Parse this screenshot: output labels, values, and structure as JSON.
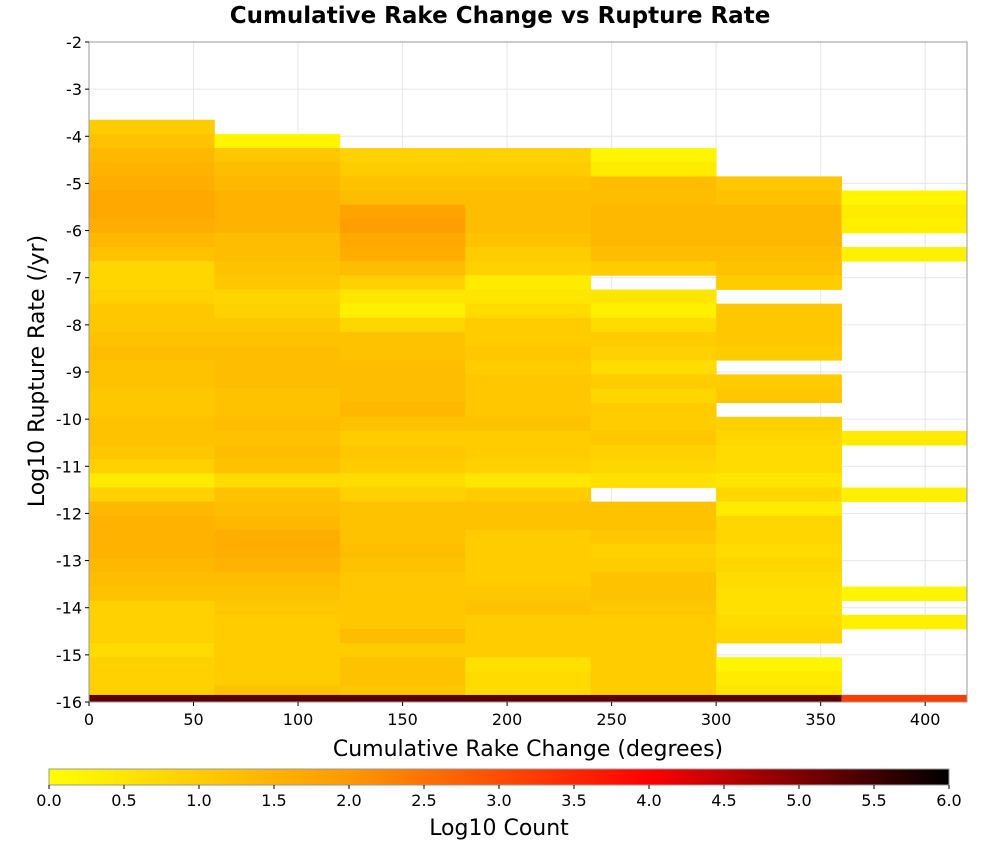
{
  "chart_data": {
    "type": "heatmap",
    "title": "Cumulative Rake Change vs Rupture Rate",
    "xlabel": "Cumulative Rake Change (degrees)",
    "ylabel": "Log10 Rupture Rate (/yr)",
    "xlim": [
      0,
      420
    ],
    "ylim": [
      -16,
      -2
    ],
    "x_ticks": [
      0,
      50,
      100,
      150,
      200,
      250,
      300,
      350,
      400
    ],
    "y_ticks": [
      -2,
      -3,
      -4,
      -5,
      -6,
      -7,
      -8,
      -9,
      -10,
      -11,
      -12,
      -13,
      -14,
      -15,
      -16
    ],
    "grid": true,
    "x_bin_edges": [
      0,
      60,
      120,
      180,
      240,
      300,
      360,
      420
    ],
    "y_bin_width": 0.3,
    "colorbar": {
      "label": "Log10 Count",
      "min": 0.0,
      "max": 6.0,
      "ticks": [
        "0.0",
        "0.5",
        "1.0",
        "1.5",
        "2.0",
        "2.5",
        "3.0",
        "3.5",
        "4.0",
        "4.5",
        "5.0",
        "5.5",
        "6.0"
      ],
      "colormap": "hot-reversed",
      "stops": [
        "#ffff00",
        "#ff9900",
        "#ff0000",
        "#000000"
      ]
    },
    "columns": [
      {
        "x0": 0,
        "x1": 60,
        "cells": [
          {
            "y": -3.8,
            "v": 1.0
          },
          {
            "y": -4.1,
            "v": 1.2
          },
          {
            "y": -4.4,
            "v": 1.4
          },
          {
            "y": -4.7,
            "v": 1.5
          },
          {
            "y": -5.0,
            "v": 1.6
          },
          {
            "y": -5.3,
            "v": 1.7
          },
          {
            "y": -5.6,
            "v": 1.7
          },
          {
            "y": -5.9,
            "v": 1.6
          },
          {
            "y": -6.2,
            "v": 1.4
          },
          {
            "y": -6.5,
            "v": 1.2
          },
          {
            "y": -6.8,
            "v": 0.8
          },
          {
            "y": -7.1,
            "v": 0.8
          },
          {
            "y": -7.4,
            "v": 0.9
          },
          {
            "y": -7.7,
            "v": 1.1
          },
          {
            "y": -8.0,
            "v": 1.1
          },
          {
            "y": -8.3,
            "v": 1.2
          },
          {
            "y": -8.6,
            "v": 1.3
          },
          {
            "y": -8.9,
            "v": 1.2
          },
          {
            "y": -9.2,
            "v": 1.2
          },
          {
            "y": -9.5,
            "v": 1.1
          },
          {
            "y": -9.8,
            "v": 1.1
          },
          {
            "y": -10.1,
            "v": 1.2
          },
          {
            "y": -10.4,
            "v": 1.2
          },
          {
            "y": -10.7,
            "v": 1.1
          },
          {
            "y": -11.0,
            "v": 0.9
          },
          {
            "y": -11.3,
            "v": 0.4
          },
          {
            "y": -11.6,
            "v": 0.9
          },
          {
            "y": -11.9,
            "v": 1.4
          },
          {
            "y": -12.2,
            "v": 1.5
          },
          {
            "y": -12.5,
            "v": 1.5
          },
          {
            "y": -12.8,
            "v": 1.5
          },
          {
            "y": -13.1,
            "v": 1.4
          },
          {
            "y": -13.4,
            "v": 1.3
          },
          {
            "y": -13.7,
            "v": 1.2
          },
          {
            "y": -14.0,
            "v": 0.9
          },
          {
            "y": -14.3,
            "v": 0.9
          },
          {
            "y": -14.6,
            "v": 0.9
          },
          {
            "y": -14.9,
            "v": 0.7
          },
          {
            "y": -15.2,
            "v": 0.9
          },
          {
            "y": -15.5,
            "v": 0.9
          },
          {
            "y": -15.8,
            "v": 0.9
          }
        ]
      },
      {
        "x0": 60,
        "x1": 120,
        "cells": [
          {
            "y": -4.1,
            "v": 0.2
          },
          {
            "y": -4.4,
            "v": 1.1
          },
          {
            "y": -4.7,
            "v": 1.3
          },
          {
            "y": -5.0,
            "v": 1.4
          },
          {
            "y": -5.3,
            "v": 1.5
          },
          {
            "y": -5.6,
            "v": 1.5
          },
          {
            "y": -5.9,
            "v": 1.5
          },
          {
            "y": -6.2,
            "v": 1.3
          },
          {
            "y": -6.5,
            "v": 1.3
          },
          {
            "y": -6.8,
            "v": 1.2
          },
          {
            "y": -7.1,
            "v": 1.1
          },
          {
            "y": -7.4,
            "v": 0.8
          },
          {
            "y": -7.7,
            "v": 0.9
          },
          {
            "y": -8.0,
            "v": 1.1
          },
          {
            "y": -8.3,
            "v": 1.2
          },
          {
            "y": -8.6,
            "v": 1.3
          },
          {
            "y": -8.9,
            "v": 1.3
          },
          {
            "y": -9.2,
            "v": 1.3
          },
          {
            "y": -9.5,
            "v": 1.2
          },
          {
            "y": -9.8,
            "v": 1.2
          },
          {
            "y": -10.1,
            "v": 1.3
          },
          {
            "y": -10.4,
            "v": 1.2
          },
          {
            "y": -10.7,
            "v": 1.3
          },
          {
            "y": -11.0,
            "v": 1.2
          },
          {
            "y": -11.3,
            "v": 0.7
          },
          {
            "y": -11.6,
            "v": 1.2
          },
          {
            "y": -11.9,
            "v": 1.3
          },
          {
            "y": -12.2,
            "v": 1.4
          },
          {
            "y": -12.5,
            "v": 1.6
          },
          {
            "y": -12.8,
            "v": 1.6
          },
          {
            "y": -13.1,
            "v": 1.5
          },
          {
            "y": -13.4,
            "v": 1.3
          },
          {
            "y": -13.7,
            "v": 1.2
          },
          {
            "y": -14.0,
            "v": 1.1
          },
          {
            "y": -14.3,
            "v": 1.0
          },
          {
            "y": -14.6,
            "v": 1.0
          },
          {
            "y": -14.9,
            "v": 1.0
          },
          {
            "y": -15.2,
            "v": 1.0
          },
          {
            "y": -15.5,
            "v": 1.0
          },
          {
            "y": -15.8,
            "v": 1.2
          }
        ]
      },
      {
        "x0": 120,
        "x1": 180,
        "cells": [
          {
            "y": -4.4,
            "v": 0.9
          },
          {
            "y": -4.7,
            "v": 1.0
          },
          {
            "y": -5.0,
            "v": 1.2
          },
          {
            "y": -5.3,
            "v": 1.3
          },
          {
            "y": -5.6,
            "v": 1.8
          },
          {
            "y": -5.9,
            "v": 1.9
          },
          {
            "y": -6.2,
            "v": 1.7
          },
          {
            "y": -6.5,
            "v": 1.6
          },
          {
            "y": -6.8,
            "v": 1.3
          },
          {
            "y": -7.1,
            "v": 0.9
          },
          {
            "y": -7.4,
            "v": 0.5
          },
          {
            "y": -7.7,
            "v": 0.3
          },
          {
            "y": -8.0,
            "v": 0.8
          },
          {
            "y": -8.3,
            "v": 1.2
          },
          {
            "y": -8.6,
            "v": 1.2
          },
          {
            "y": -8.9,
            "v": 1.3
          },
          {
            "y": -9.2,
            "v": 1.3
          },
          {
            "y": -9.5,
            "v": 1.3
          },
          {
            "y": -9.8,
            "v": 1.4
          },
          {
            "y": -10.1,
            "v": 1.2
          },
          {
            "y": -10.4,
            "v": 1.0
          },
          {
            "y": -10.7,
            "v": 1.1
          },
          {
            "y": -11.0,
            "v": 1.0
          },
          {
            "y": -11.3,
            "v": 0.7
          },
          {
            "y": -11.6,
            "v": 0.9
          },
          {
            "y": -11.9,
            "v": 1.2
          },
          {
            "y": -12.2,
            "v": 1.2
          },
          {
            "y": -12.5,
            "v": 1.2
          },
          {
            "y": -12.8,
            "v": 1.3
          },
          {
            "y": -13.1,
            "v": 1.2
          },
          {
            "y": -13.4,
            "v": 1.1
          },
          {
            "y": -13.7,
            "v": 1.1
          },
          {
            "y": -14.0,
            "v": 1.1
          },
          {
            "y": -14.3,
            "v": 1.1
          },
          {
            "y": -14.6,
            "v": 1.3
          },
          {
            "y": -14.9,
            "v": 1.0
          },
          {
            "y": -15.2,
            "v": 1.2
          },
          {
            "y": -15.5,
            "v": 1.2
          },
          {
            "y": -15.8,
            "v": 1.1
          }
        ]
      },
      {
        "x0": 180,
        "x1": 240,
        "cells": [
          {
            "y": -4.4,
            "v": 0.9
          },
          {
            "y": -4.7,
            "v": 1.0
          },
          {
            "y": -5.0,
            "v": 1.2
          },
          {
            "y": -5.3,
            "v": 1.3
          },
          {
            "y": -5.6,
            "v": 1.3
          },
          {
            "y": -5.9,
            "v": 1.3
          },
          {
            "y": -6.2,
            "v": 1.2
          },
          {
            "y": -6.5,
            "v": 1.0
          },
          {
            "y": -6.8,
            "v": 0.9
          },
          {
            "y": -7.1,
            "v": 0.4
          },
          {
            "y": -7.4,
            "v": 0.5
          },
          {
            "y": -7.7,
            "v": 0.7
          },
          {
            "y": -8.0,
            "v": 1.0
          },
          {
            "y": -8.3,
            "v": 1.0
          },
          {
            "y": -8.6,
            "v": 1.1
          },
          {
            "y": -8.9,
            "v": 1.0
          },
          {
            "y": -9.2,
            "v": 1.1
          },
          {
            "y": -9.5,
            "v": 1.1
          },
          {
            "y": -9.8,
            "v": 1.1
          },
          {
            "y": -10.1,
            "v": 1.2
          },
          {
            "y": -10.4,
            "v": 1.0
          },
          {
            "y": -10.7,
            "v": 1.0
          },
          {
            "y": -11.0,
            "v": 0.9
          },
          {
            "y": -11.3,
            "v": 0.5
          },
          {
            "y": -11.6,
            "v": 1.0
          },
          {
            "y": -11.9,
            "v": 1.2
          },
          {
            "y": -12.2,
            "v": 1.2
          },
          {
            "y": -12.5,
            "v": 1.0
          },
          {
            "y": -12.8,
            "v": 1.0
          },
          {
            "y": -13.1,
            "v": 1.0
          },
          {
            "y": -13.4,
            "v": 1.0
          },
          {
            "y": -13.7,
            "v": 1.1
          },
          {
            "y": -14.0,
            "v": 1.2
          },
          {
            "y": -14.3,
            "v": 1.0
          },
          {
            "y": -14.6,
            "v": 1.0
          },
          {
            "y": -14.9,
            "v": 1.0
          },
          {
            "y": -15.2,
            "v": 0.6
          },
          {
            "y": -15.5,
            "v": 0.7
          },
          {
            "y": -15.8,
            "v": 0.7
          }
        ]
      },
      {
        "x0": 240,
        "x1": 300,
        "cells": [
          {
            "y": -4.4,
            "v": 0.2
          },
          {
            "y": -4.7,
            "v": 0.4
          },
          {
            "y": -5.0,
            "v": 1.3
          },
          {
            "y": -5.3,
            "v": 1.3
          },
          {
            "y": -5.6,
            "v": 1.4
          },
          {
            "y": -5.9,
            "v": 1.4
          },
          {
            "y": -6.2,
            "v": 1.4
          },
          {
            "y": -6.5,
            "v": 1.3
          },
          {
            "y": -6.8,
            "v": 1.0
          },
          {
            "y": -7.4,
            "v": 0.5
          },
          {
            "y": -7.7,
            "v": 0.3
          },
          {
            "y": -8.0,
            "v": 0.7
          },
          {
            "y": -8.3,
            "v": 1.0
          },
          {
            "y": -8.6,
            "v": 0.9
          },
          {
            "y": -8.9,
            "v": 0.7
          },
          {
            "y": -9.2,
            "v": 1.0
          },
          {
            "y": -9.5,
            "v": 0.8
          },
          {
            "y": -9.8,
            "v": 1.0
          },
          {
            "y": -10.1,
            "v": 1.0
          },
          {
            "y": -10.4,
            "v": 1.1
          },
          {
            "y": -10.7,
            "v": 0.9
          },
          {
            "y": -11.0,
            "v": 0.8
          },
          {
            "y": -11.3,
            "v": 0.6
          },
          {
            "y": -11.9,
            "v": 1.2
          },
          {
            "y": -12.2,
            "v": 1.2
          },
          {
            "y": -12.5,
            "v": 1.1
          },
          {
            "y": -12.8,
            "v": 0.9
          },
          {
            "y": -13.1,
            "v": 1.0
          },
          {
            "y": -13.4,
            "v": 1.2
          },
          {
            "y": -13.7,
            "v": 1.2
          },
          {
            "y": -14.0,
            "v": 1.1
          },
          {
            "y": -14.3,
            "v": 1.0
          },
          {
            "y": -14.6,
            "v": 1.0
          },
          {
            "y": -14.9,
            "v": 1.0
          },
          {
            "y": -15.2,
            "v": 1.0
          },
          {
            "y": -15.5,
            "v": 1.0
          },
          {
            "y": -15.8,
            "v": 1.0
          }
        ]
      },
      {
        "x0": 300,
        "x1": 360,
        "cells": [
          {
            "y": -5.0,
            "v": 1.1
          },
          {
            "y": -5.3,
            "v": 1.2
          },
          {
            "y": -5.6,
            "v": 1.4
          },
          {
            "y": -5.9,
            "v": 1.4
          },
          {
            "y": -6.2,
            "v": 1.4
          },
          {
            "y": -6.5,
            "v": 1.3
          },
          {
            "y": -6.8,
            "v": 1.2
          },
          {
            "y": -7.1,
            "v": 1.0
          },
          {
            "y": -7.7,
            "v": 1.1
          },
          {
            "y": -8.0,
            "v": 1.1
          },
          {
            "y": -8.3,
            "v": 1.1
          },
          {
            "y": -8.6,
            "v": 1.0
          },
          {
            "y": -9.2,
            "v": 1.0
          },
          {
            "y": -9.5,
            "v": 1.1
          },
          {
            "y": -10.1,
            "v": 0.9
          },
          {
            "y": -10.4,
            "v": 0.8
          },
          {
            "y": -10.7,
            "v": 0.7
          },
          {
            "y": -11.0,
            "v": 0.7
          },
          {
            "y": -11.3,
            "v": 0.5
          },
          {
            "y": -11.6,
            "v": 0.8
          },
          {
            "y": -11.9,
            "v": 0.4
          },
          {
            "y": -12.2,
            "v": 0.8
          },
          {
            "y": -12.5,
            "v": 0.8
          },
          {
            "y": -12.8,
            "v": 0.7
          },
          {
            "y": -13.1,
            "v": 0.8
          },
          {
            "y": -13.4,
            "v": 0.7
          },
          {
            "y": -13.7,
            "v": 0.6
          },
          {
            "y": -14.0,
            "v": 0.6
          },
          {
            "y": -14.3,
            "v": 0.7
          },
          {
            "y": -14.6,
            "v": 0.8
          },
          {
            "y": -15.2,
            "v": 0.2
          },
          {
            "y": -15.5,
            "v": 0.4
          },
          {
            "y": -15.8,
            "v": 0.5
          }
        ]
      },
      {
        "x0": 360,
        "x1": 420,
        "cells": [
          {
            "y": -5.3,
            "v": 0.2
          },
          {
            "y": -5.6,
            "v": 0.4
          },
          {
            "y": -5.9,
            "v": 0.3
          },
          {
            "y": -6.5,
            "v": 0.3
          },
          {
            "y": -10.4,
            "v": 0.4
          },
          {
            "y": -11.6,
            "v": 0.3
          },
          {
            "y": -13.7,
            "v": 0.2
          },
          {
            "y": -14.3,
            "v": 0.3
          }
        ]
      }
    ],
    "bottom_band": [
      {
        "x0": 0,
        "x1": 360,
        "y0": -16.0,
        "y1": -15.85,
        "v": 5.3
      },
      {
        "x0": 360,
        "x1": 420,
        "y0": -16.0,
        "y1": -15.85,
        "v": 3.2
      }
    ]
  }
}
